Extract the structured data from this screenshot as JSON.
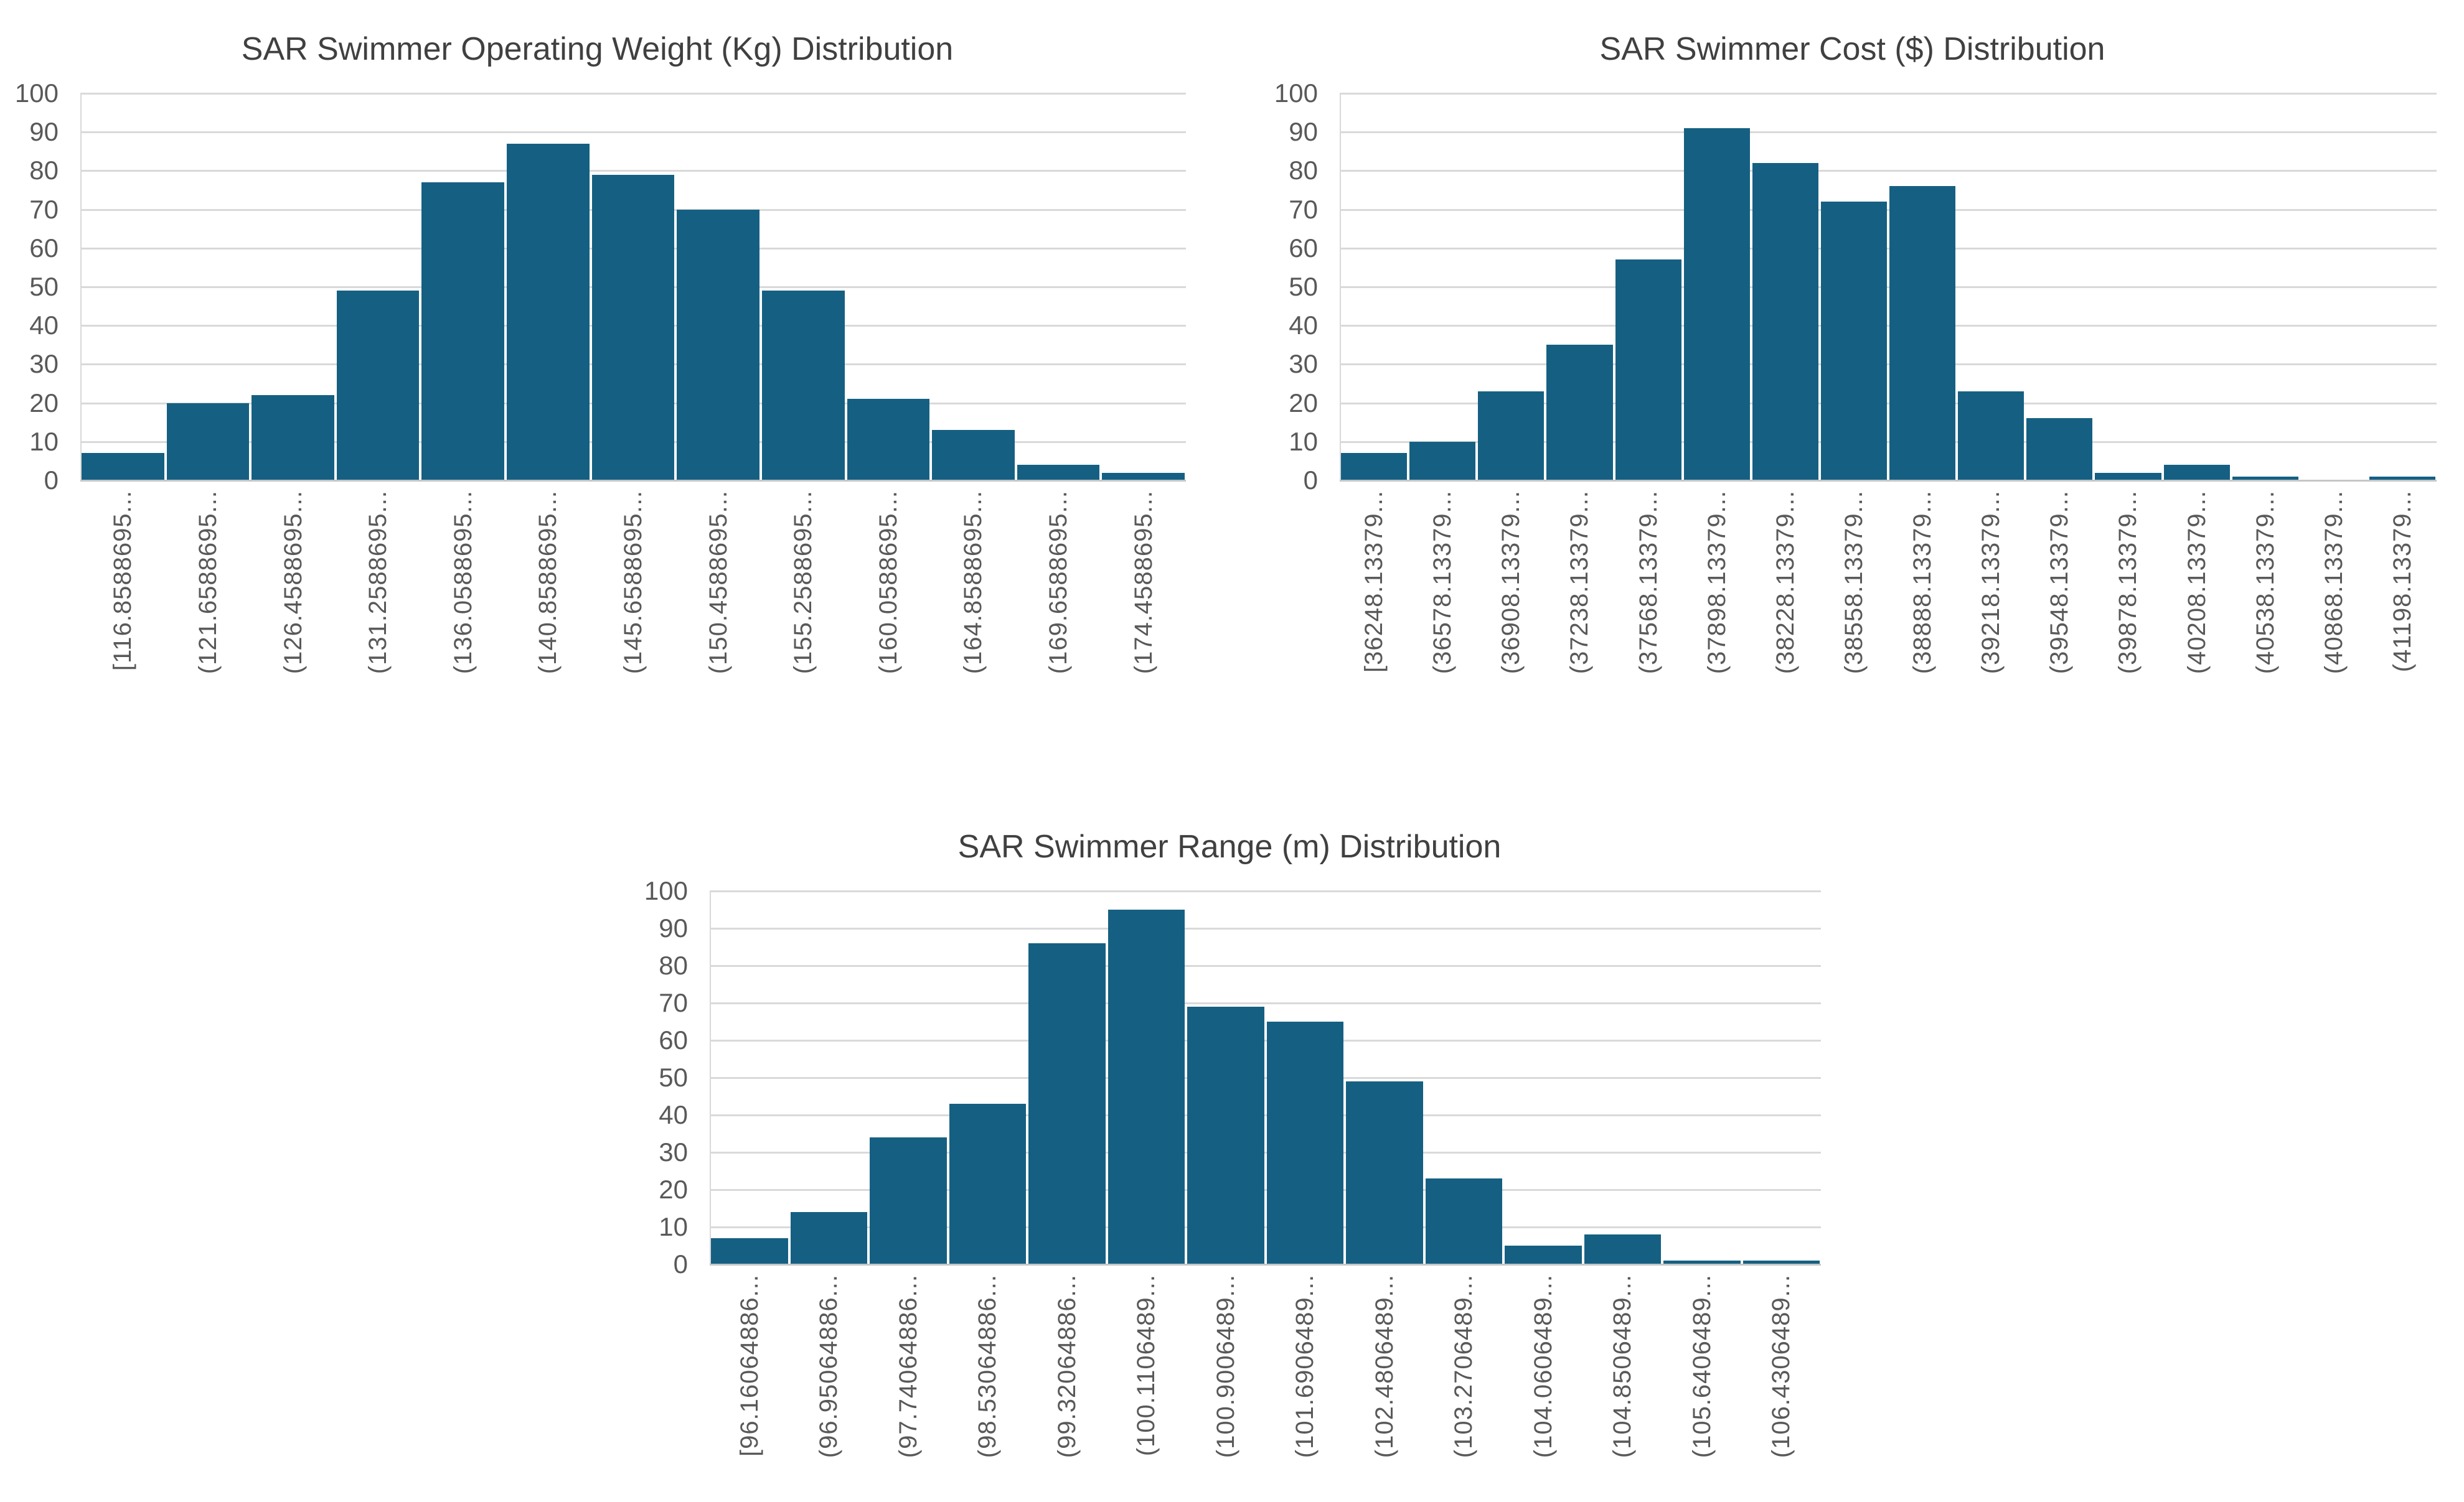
{
  "colors": {
    "bar": "#156082",
    "gridline": "#d9d9d9",
    "axis_line": "#c6c6c6",
    "tick_text": "#595959",
    "title_text": "#404040"
  },
  "chart_data": [
    {
      "type": "bar",
      "subtype": "histogram",
      "title": "SAR Swimmer Operating Weight (Kg) Distribution",
      "xlabel": "",
      "ylabel": "",
      "ylim": [
        0,
        100
      ],
      "yticks": [
        0,
        10,
        20,
        30,
        40,
        50,
        60,
        70,
        80,
        90,
        100
      ],
      "grid": true,
      "legend": false,
      "categories": [
        "[116.8588695...",
        "(121.6588695...",
        "(126.4588695...",
        "(131.2588695...",
        "(136.0588695...",
        "(140.8588695...",
        "(145.6588695...",
        "(150.4588695...",
        "(155.2588695...",
        "(160.0588695...",
        "(164.8588695...",
        "(169.6588695...",
        "(174.4588695..."
      ],
      "values": [
        7,
        20,
        22,
        49,
        77,
        87,
        79,
        70,
        49,
        21,
        13,
        4,
        2
      ]
    },
    {
      "type": "bar",
      "subtype": "histogram",
      "title": "SAR Swimmer Cost ($) Distribution",
      "xlabel": "",
      "ylabel": "",
      "ylim": [
        0,
        100
      ],
      "yticks": [
        0,
        10,
        20,
        30,
        40,
        50,
        60,
        70,
        80,
        90,
        100
      ],
      "grid": true,
      "legend": false,
      "categories": [
        "[36248.13379...",
        "(36578.13379...",
        "(36908.13379...",
        "(37238.13379...",
        "(37568.13379...",
        "(37898.13379...",
        "(38228.13379...",
        "(38558.13379...",
        "(38888.13379...",
        "(39218.13379...",
        "(39548.13379...",
        "(39878.13379...",
        "(40208.13379...",
        "(40538.13379...",
        "(40868.13379...",
        "(41198.13379..."
      ],
      "values": [
        7,
        10,
        23,
        35,
        57,
        91,
        82,
        72,
        76,
        23,
        16,
        2,
        4,
        1,
        0,
        1
      ]
    },
    {
      "type": "bar",
      "subtype": "histogram",
      "title": "SAR Swimmer Range (m) Distribution",
      "xlabel": "",
      "ylabel": "",
      "ylim": [
        0,
        100
      ],
      "yticks": [
        0,
        10,
        20,
        30,
        40,
        50,
        60,
        70,
        80,
        90,
        100
      ],
      "grid": true,
      "legend": false,
      "categories": [
        "[96.16064886...",
        "(96.95064886...",
        "(97.74064886...",
        "(98.53064886...",
        "(99.32064886...",
        "(100.1106489...",
        "(100.9006489...",
        "(101.6906489...",
        "(102.4806489...",
        "(103.2706489...",
        "(104.0606489...",
        "(104.8506489...",
        "(105.6406489...",
        "(106.4306489..."
      ],
      "values": [
        7,
        14,
        34,
        43,
        86,
        95,
        69,
        65,
        49,
        23,
        5,
        8,
        1,
        1
      ]
    }
  ]
}
